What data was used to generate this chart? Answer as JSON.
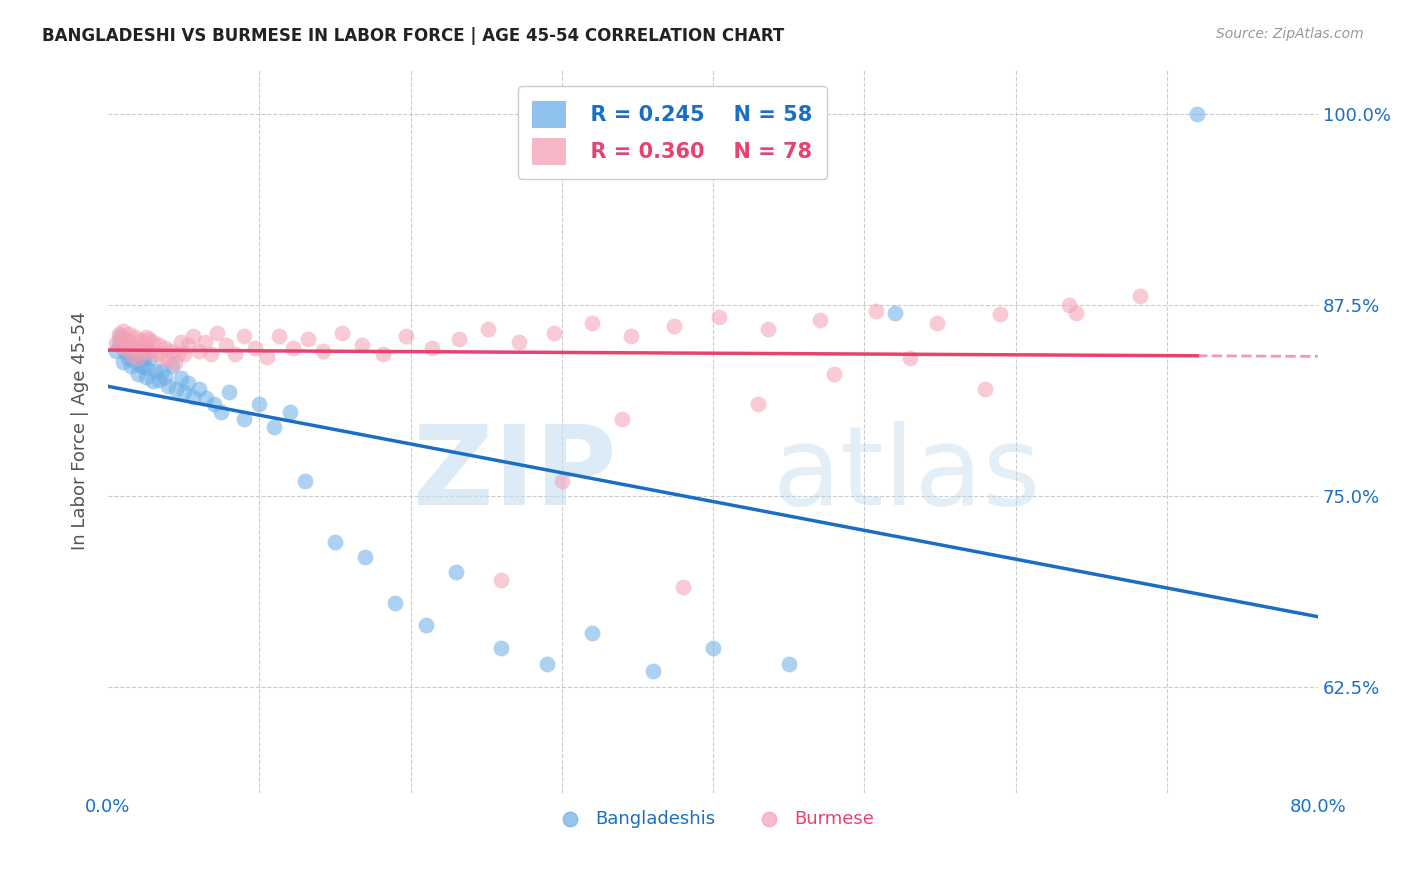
{
  "title": "BANGLADESHI VS BURMESE IN LABOR FORCE | AGE 45-54 CORRELATION CHART",
  "source": "Source: ZipAtlas.com",
  "ylabel": "In Labor Force | Age 45-54",
  "ytick_labels": [
    "62.5%",
    "75.0%",
    "87.5%",
    "100.0%"
  ],
  "ytick_values": [
    0.625,
    0.75,
    0.875,
    1.0
  ],
  "xlim": [
    0.0,
    0.8
  ],
  "ylim": [
    0.555,
    1.03
  ],
  "legend_r_blue": "R = 0.245",
  "legend_n_blue": "N = 58",
  "legend_r_pink": "R = 0.360",
  "legend_n_pink": "N = 78",
  "blue_color": "#6aaee6",
  "pink_color": "#f4a0b5",
  "blue_line_color": "#1a6fc4",
  "pink_line_color": "#e8436e",
  "title_color": "#222222",
  "axis_label_color": "#1a6fc4",
  "blue_scatter_x": [
    0.005,
    0.007,
    0.008,
    0.009,
    0.01,
    0.01,
    0.011,
    0.012,
    0.013,
    0.014,
    0.015,
    0.016,
    0.017,
    0.018,
    0.019,
    0.02,
    0.021,
    0.022,
    0.023,
    0.024,
    0.025,
    0.026,
    0.028,
    0.03,
    0.032,
    0.034,
    0.036,
    0.038,
    0.04,
    0.042,
    0.045,
    0.048,
    0.05,
    0.053,
    0.056,
    0.06,
    0.065,
    0.07,
    0.075,
    0.08,
    0.09,
    0.1,
    0.11,
    0.12,
    0.13,
    0.15,
    0.17,
    0.19,
    0.21,
    0.23,
    0.26,
    0.29,
    0.32,
    0.36,
    0.4,
    0.45,
    0.52,
    0.72
  ],
  "blue_scatter_y": [
    0.845,
    0.85,
    0.855,
    0.848,
    0.852,
    0.838,
    0.844,
    0.85,
    0.84,
    0.845,
    0.835,
    0.842,
    0.848,
    0.838,
    0.843,
    0.83,
    0.836,
    0.842,
    0.835,
    0.84,
    0.828,
    0.834,
    0.84,
    0.825,
    0.832,
    0.826,
    0.832,
    0.828,
    0.822,
    0.835,
    0.82,
    0.827,
    0.818,
    0.824,
    0.815,
    0.82,
    0.814,
    0.81,
    0.805,
    0.818,
    0.8,
    0.81,
    0.795,
    0.805,
    0.76,
    0.72,
    0.71,
    0.68,
    0.665,
    0.7,
    0.65,
    0.64,
    0.66,
    0.635,
    0.65,
    0.64,
    0.87,
    1.0
  ],
  "pink_scatter_x": [
    0.005,
    0.007,
    0.008,
    0.009,
    0.01,
    0.011,
    0.012,
    0.013,
    0.014,
    0.015,
    0.016,
    0.017,
    0.018,
    0.019,
    0.02,
    0.021,
    0.022,
    0.023,
    0.024,
    0.025,
    0.026,
    0.027,
    0.028,
    0.03,
    0.032,
    0.034,
    0.036,
    0.038,
    0.04,
    0.042,
    0.044,
    0.046,
    0.048,
    0.05,
    0.053,
    0.056,
    0.06,
    0.064,
    0.068,
    0.072,
    0.078,
    0.084,
    0.09,
    0.097,
    0.105,
    0.113,
    0.122,
    0.132,
    0.142,
    0.155,
    0.168,
    0.182,
    0.197,
    0.214,
    0.232,
    0.251,
    0.272,
    0.295,
    0.32,
    0.346,
    0.374,
    0.404,
    0.436,
    0.471,
    0.508,
    0.548,
    0.59,
    0.635,
    0.682,
    0.64,
    0.58,
    0.53,
    0.48,
    0.43,
    0.38,
    0.34,
    0.3,
    0.26
  ],
  "pink_scatter_y": [
    0.85,
    0.856,
    0.848,
    0.854,
    0.858,
    0.852,
    0.846,
    0.852,
    0.856,
    0.848,
    0.842,
    0.848,
    0.854,
    0.846,
    0.84,
    0.846,
    0.852,
    0.844,
    0.85,
    0.854,
    0.847,
    0.853,
    0.845,
    0.851,
    0.843,
    0.849,
    0.841,
    0.847,
    0.839,
    0.845,
    0.837,
    0.843,
    0.851,
    0.843,
    0.849,
    0.855,
    0.845,
    0.851,
    0.843,
    0.857,
    0.849,
    0.843,
    0.855,
    0.847,
    0.841,
    0.855,
    0.847,
    0.853,
    0.845,
    0.857,
    0.849,
    0.843,
    0.855,
    0.847,
    0.853,
    0.859,
    0.851,
    0.857,
    0.863,
    0.855,
    0.861,
    0.867,
    0.859,
    0.865,
    0.871,
    0.863,
    0.869,
    0.875,
    0.881,
    0.87,
    0.82,
    0.84,
    0.83,
    0.81,
    0.69,
    0.8,
    0.76,
    0.695
  ]
}
